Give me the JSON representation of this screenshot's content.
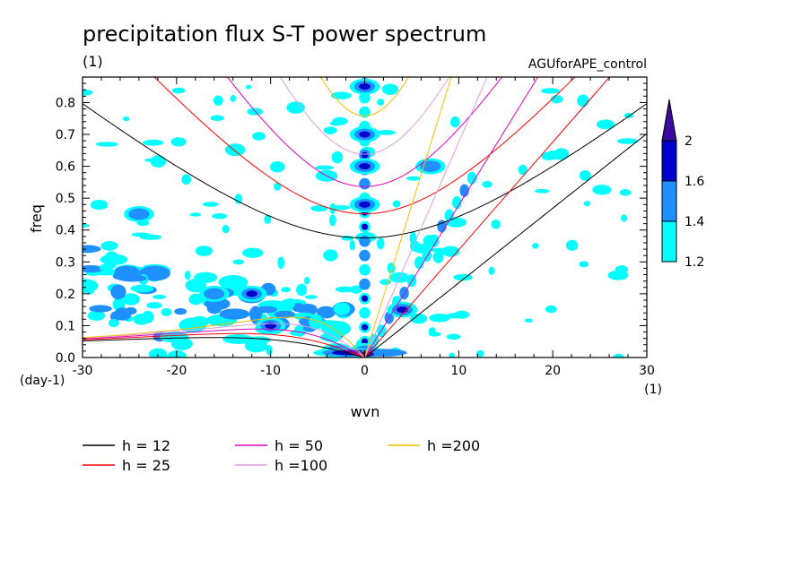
{
  "chart_data": {
    "type": "contour",
    "title": "precipitation flux S-T power spectrum",
    "subtitle": "(1)",
    "run_label": "AGUforAPE_control",
    "xlabel": "wvn",
    "ylabel": "freq",
    "x_unit": "(1)",
    "y_unit": "(day-1)",
    "xlim": [
      -30,
      30
    ],
    "ylim": [
      0,
      0.88
    ],
    "xticks": [
      "-30",
      "-20",
      "-10",
      "0",
      "10",
      "20",
      "30"
    ],
    "yticks": [
      "0.0",
      "0.1",
      "0.2",
      "0.3",
      "0.4",
      "0.5",
      "0.6",
      "0.7",
      "0.8"
    ],
    "colorbar": {
      "levels": [
        "1.2",
        "1.4",
        "1.6",
        "2"
      ],
      "colors": [
        "#00ffff",
        "#1e90ff",
        "#0000cd",
        "#3b0aa0"
      ]
    },
    "dispersion_curves": [
      {
        "name": "h = 12",
        "h": 12,
        "color": "#000000"
      },
      {
        "name": "h = 25",
        "h": 25,
        "color": "#ff0000"
      },
      {
        "name": "h = 50",
        "h": 50,
        "color": "#e000c0"
      },
      {
        "name": "h =100",
        "h": 100,
        "color": "#e39be0"
      },
      {
        "name": "h =200",
        "h": 200,
        "color": "#f0c000"
      }
    ],
    "spectral_features": [
      {
        "wvn": 0,
        "freq": 0.02,
        "level": 2
      },
      {
        "wvn": 0,
        "freq": 0.85,
        "level": 1.6
      },
      {
        "wvn": 0,
        "freq": 0.7,
        "level": 1.6
      },
      {
        "wvn": 0,
        "freq": 0.6,
        "level": 1.6
      },
      {
        "wvn": 0,
        "freq": 0.48,
        "level": 1.6
      },
      {
        "wvn": -10,
        "freq": 0.1,
        "level": 1.6
      },
      {
        "wvn": -12,
        "freq": 0.2,
        "level": 1.6
      },
      {
        "wvn": -3,
        "freq": 0.02,
        "level": 2
      },
      {
        "wvn": 4,
        "freq": 0.15,
        "level": 1.6
      },
      {
        "wvn": 7,
        "freq": 0.6,
        "level": 1.4
      },
      {
        "wvn": -24,
        "freq": 0.45,
        "level": 1.4
      },
      {
        "wvn": -16,
        "freq": 0.2,
        "level": 1.4
      }
    ]
  }
}
